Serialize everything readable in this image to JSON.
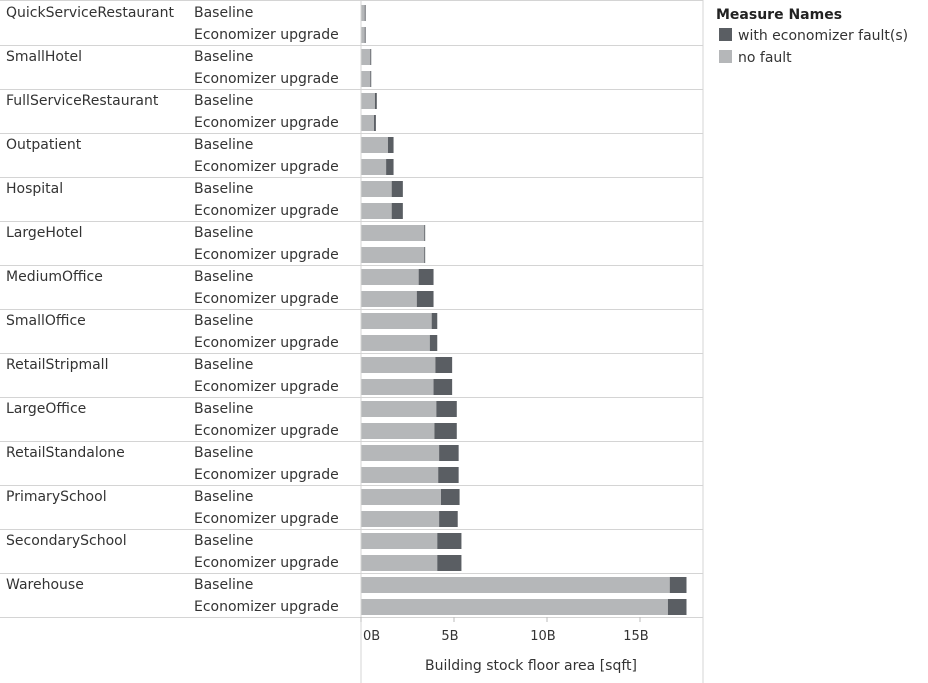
{
  "chart_data": {
    "type": "bar",
    "orientation": "horizontal",
    "stacked": true,
    "categories": [
      "QuickServiceRestaurant",
      "SmallHotel",
      "FullServiceRestaurant",
      "Outpatient",
      "Hospital",
      "LargeHotel",
      "MediumOffice",
      "SmallOffice",
      "RetailStripmall",
      "LargeOffice",
      "RetailStandalone",
      "PrimarySchool",
      "SecondarySchool",
      "Warehouse"
    ],
    "subcategories": [
      "Baseline",
      "Economizer upgrade"
    ],
    "series": [
      {
        "name": "no fault",
        "color": "#b5b7b9",
        "values": [
          [
            0.2,
            0.2
          ],
          [
            0.5,
            0.5
          ],
          [
            0.75,
            0.7
          ],
          [
            1.45,
            1.35
          ],
          [
            1.65,
            1.65
          ],
          [
            3.4,
            3.4
          ],
          [
            3.1,
            3.0
          ],
          [
            3.8,
            3.7
          ],
          [
            4.0,
            3.9
          ],
          [
            4.05,
            3.95
          ],
          [
            4.2,
            4.15
          ],
          [
            4.3,
            4.2
          ],
          [
            4.1,
            4.1
          ],
          [
            16.6,
            16.5
          ]
        ]
      },
      {
        "name": "with economizer fault(s)",
        "color": "#5a5e63",
        "values": [
          [
            0.05,
            0.05
          ],
          [
            0.05,
            0.05
          ],
          [
            0.1,
            0.1
          ],
          [
            0.3,
            0.4
          ],
          [
            0.6,
            0.6
          ],
          [
            0.05,
            0.05
          ],
          [
            0.8,
            0.9
          ],
          [
            0.3,
            0.4
          ],
          [
            0.9,
            1.0
          ],
          [
            1.1,
            1.2
          ],
          [
            1.05,
            1.1
          ],
          [
            1.0,
            1.0
          ],
          [
            1.3,
            1.3
          ],
          [
            0.9,
            1.0
          ]
        ]
      }
    ],
    "xlabel": "Building stock floor area [sqft]",
    "ylabel": "",
    "xlim": [
      0,
      18.5
    ],
    "xticks": [
      0,
      5,
      10,
      15
    ],
    "xtick_labels": [
      "0B",
      "5B",
      "10B",
      "15B"
    ],
    "grid": false,
    "legend": {
      "title": "Measure Names",
      "placement": "right",
      "entries": [
        {
          "label": "with economizer fault(s)",
          "color": "#5a5e63"
        },
        {
          "label": "no fault",
          "color": "#b5b7b9"
        }
      ]
    }
  }
}
